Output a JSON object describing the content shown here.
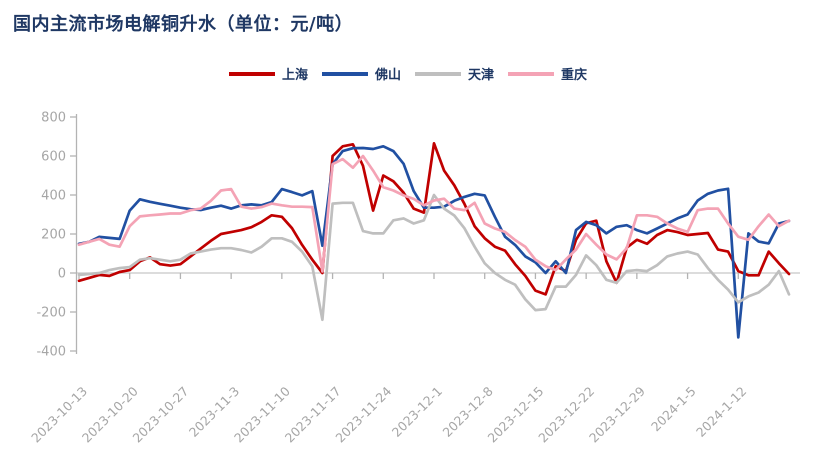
{
  "title": "国内主流市场电解铜升水（单位：元/吨）",
  "colors": {
    "title_text": "#1f3864",
    "legend_text": "#1f3864",
    "axis_line": "#b3b3b3",
    "axis_text": "#a6a6a6",
    "zero_line": "#c6c6c6",
    "background": "#ffffff"
  },
  "chart_data": {
    "type": "line",
    "title": "国内主流市场电解铜升水（单位：元/吨）",
    "ylabel": "元/吨",
    "ylim": [
      -400,
      800
    ],
    "yticks": [
      800,
      600,
      400,
      200,
      0,
      -200,
      -400
    ],
    "grid": false,
    "legend_position": "top-center",
    "xtick_every": 5,
    "xtick_labels": [
      "2023-10-13",
      "2023-10-20",
      "2023-10-27",
      "2023-11-3",
      "2023-11-10",
      "2023-11-17",
      "2023-11-24",
      "2023-12-1",
      "2023-12-8",
      "2023-12-15",
      "2023-12-22",
      "2023-12-29",
      "2024-1-5",
      "2024-1-12"
    ],
    "x": [
      "2023-10-13",
      "2023-10-16",
      "2023-10-17",
      "2023-10-18",
      "2023-10-19",
      "2023-10-20",
      "2023-10-23",
      "2023-10-24",
      "2023-10-25",
      "2023-10-26",
      "2023-10-27",
      "2023-10-30",
      "2023-10-31",
      "2023-11-1",
      "2023-11-2",
      "2023-11-3",
      "2023-11-6",
      "2023-11-7",
      "2023-11-8",
      "2023-11-9",
      "2023-11-10",
      "2023-11-13",
      "2023-11-14",
      "2023-11-15",
      "2023-11-16",
      "2023-11-17",
      "2023-11-20",
      "2023-11-21",
      "2023-11-22",
      "2023-11-23",
      "2023-11-24",
      "2023-11-27",
      "2023-11-28",
      "2023-11-29",
      "2023-11-30",
      "2023-12-1",
      "2023-12-4",
      "2023-12-5",
      "2023-12-6",
      "2023-12-7",
      "2023-12-8",
      "2023-12-11",
      "2023-12-12",
      "2023-12-13",
      "2023-12-14",
      "2023-12-15",
      "2023-12-18",
      "2023-12-19",
      "2023-12-20",
      "2023-12-21",
      "2023-12-22",
      "2023-12-25",
      "2023-12-26",
      "2023-12-27",
      "2023-12-28",
      "2023-12-29",
      "2024-1-1",
      "2024-1-2",
      "2024-1-3",
      "2024-1-4",
      "2024-1-5",
      "2024-1-8",
      "2024-1-9",
      "2024-1-10",
      "2024-1-11",
      "2024-1-12",
      "2024-1-15",
      "2024-1-16",
      "2024-1-17",
      "2024-1-18",
      "2024-1-19"
    ],
    "series": [
      {
        "name": "上海",
        "color": "#c00000",
        "values": [
          -40,
          -25,
          -10,
          -15,
          5,
          15,
          60,
          80,
          45,
          38,
          45,
          85,
          125,
          165,
          200,
          210,
          220,
          235,
          262,
          296,
          288,
          230,
          144,
          68,
          0,
          600,
          650,
          660,
          550,
          320,
          500,
          470,
          412,
          330,
          310,
          665,
          525,
          450,
          355,
          240,
          178,
          135,
          115,
          45,
          -15,
          -90,
          -110,
          35,
          10,
          170,
          255,
          268,
          60,
          -50,
          130,
          170,
          150,
          195,
          220,
          210,
          195,
          200,
          205,
          120,
          110,
          10,
          -12,
          -12,
          110,
          50,
          -5
        ]
      },
      {
        "name": "佛山",
        "color": "#2150a2",
        "values": [
          150,
          160,
          185,
          180,
          175,
          320,
          378,
          365,
          355,
          345,
          335,
          327,
          323,
          335,
          345,
          330,
          347,
          352,
          347,
          364,
          430,
          415,
          398,
          420,
          140,
          558,
          625,
          640,
          641,
          636,
          650,
          625,
          560,
          420,
          335,
          335,
          340,
          370,
          390,
          406,
          398,
          288,
          186,
          144,
          85,
          55,
          0,
          60,
          0,
          220,
          262,
          245,
          203,
          237,
          245,
          220,
          203,
          228,
          254,
          280,
          300,
          372,
          406,
          423,
          432,
          -330,
          203,
          161,
          152,
          254,
          267
        ]
      },
      {
        "name": "天津",
        "color": "#bfbfbf",
        "values": [
          -10,
          -5,
          0,
          15,
          25,
          30,
          68,
          76,
          68,
          60,
          68,
          100,
          110,
          120,
          127,
          127,
          118,
          105,
          135,
          178,
          178,
          160,
          110,
          34,
          -240,
          356,
          360,
          360,
          215,
          203,
          203,
          270,
          280,
          254,
          270,
          400,
          330,
          295,
          230,
          135,
          50,
          0,
          -35,
          -60,
          -135,
          -190,
          -185,
          -70,
          -70,
          -10,
          90,
          40,
          -35,
          -50,
          10,
          15,
          10,
          40,
          85,
          100,
          110,
          95,
          25,
          -35,
          -85,
          -150,
          -120,
          -100,
          -60,
          10,
          -110
        ]
      },
      {
        "name": "重庆",
        "color": "#f4a3b5",
        "values": [
          145,
          160,
          175,
          145,
          135,
          240,
          290,
          296,
          300,
          305,
          305,
          322,
          330,
          370,
          423,
          430,
          340,
          330,
          338,
          356,
          347,
          340,
          340,
          338,
          8,
          558,
          584,
          540,
          600,
          525,
          440,
          423,
          398,
          380,
          347,
          372,
          381,
          330,
          322,
          360,
          254,
          228,
          211,
          169,
          135,
          68,
          35,
          15,
          70,
          120,
          200,
          145,
          95,
          70,
          127,
          296,
          296,
          288,
          254,
          228,
          211,
          322,
          330,
          330,
          254,
          186,
          170,
          240,
          300,
          240,
          268
        ]
      }
    ]
  }
}
